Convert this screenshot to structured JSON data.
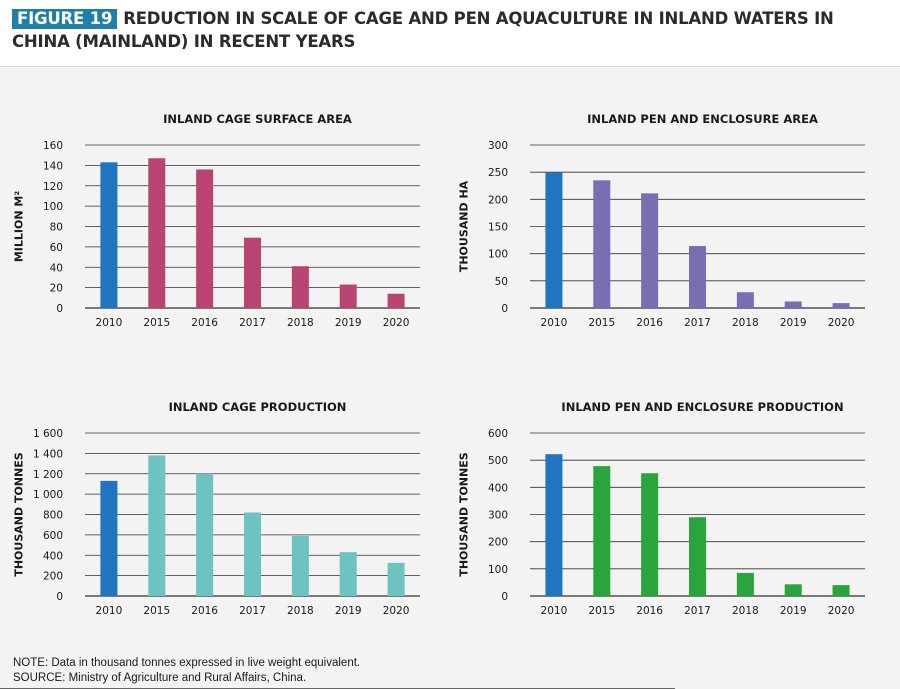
{
  "figure": {
    "tag": "FIGURE 19",
    "title": "REDUCTION IN SCALE OF CAGE AND PEN AQUACULTURE IN INLAND WATERS IN CHINA (MAINLAND) IN RECENT YEARS"
  },
  "notes": {
    "note": "NOTE: Data in thousand tonnes expressed in live weight equivalent.",
    "source": "SOURCE: Ministry of Agriculture and Rural Affairs, China."
  },
  "colors": {
    "highlight_2010": "#1f75c0",
    "cage_area": "#b94474",
    "pen_area": "#7b6db3",
    "cage_production": "#6cc3bf",
    "pen_production": "#2aa43c",
    "gridline": "#333333"
  },
  "chart_data": [
    {
      "type": "bar",
      "title": "INLAND CAGE SURFACE AREA",
      "ylabel": "MILLION M²",
      "categories": [
        "2010",
        "2015",
        "2016",
        "2017",
        "2018",
        "2019",
        "2020"
      ],
      "values": [
        143,
        147,
        136,
        69,
        41,
        23,
        14
      ],
      "ylim": [
        0,
        160
      ],
      "yticks": [
        0,
        20,
        40,
        60,
        80,
        100,
        120,
        140,
        160
      ],
      "ytick_labels": [
        "0",
        "20",
        "40",
        "60",
        "80",
        "100",
        "120",
        "140",
        "160"
      ],
      "color": "#b94474",
      "highlight_color": "#1f75c0",
      "grid": true
    },
    {
      "type": "bar",
      "title": "INLAND PEN AND ENCLOSURE AREA",
      "ylabel": "THOUSAND HA",
      "categories": [
        "2010",
        "2015",
        "2016",
        "2017",
        "2018",
        "2019",
        "2020"
      ],
      "values": [
        249,
        235,
        211,
        114,
        29,
        12,
        9
      ],
      "ylim": [
        0,
        300
      ],
      "yticks": [
        0,
        50,
        100,
        150,
        200,
        250,
        300
      ],
      "ytick_labels": [
        "0",
        "50",
        "100",
        "150",
        "200",
        "250",
        "300"
      ],
      "color": "#7b6db3",
      "highlight_color": "#1f75c0",
      "grid": true
    },
    {
      "type": "bar",
      "title": "INLAND CAGE PRODUCTION",
      "ylabel": "THOUSAND TONNES",
      "categories": [
        "2010",
        "2015",
        "2016",
        "2017",
        "2018",
        "2019",
        "2020"
      ],
      "values": [
        1130,
        1380,
        1200,
        820,
        590,
        430,
        325
      ],
      "ylim": [
        0,
        1600
      ],
      "yticks": [
        0,
        200,
        400,
        600,
        800,
        1000,
        1200,
        1400,
        1600
      ],
      "ytick_labels": [
        "0",
        "200",
        "400",
        "600",
        "800",
        "1 000",
        "1 200",
        "1 400",
        "1 600"
      ],
      "color": "#6cc3bf",
      "highlight_color": "#1f75c0",
      "grid": true
    },
    {
      "type": "bar",
      "title": "INLAND PEN AND ENCLOSURE PRODUCTION",
      "ylabel": "THOUSAND TONNES",
      "categories": [
        "2010",
        "2015",
        "2016",
        "2017",
        "2018",
        "2019",
        "2020"
      ],
      "values": [
        522,
        478,
        452,
        290,
        85,
        43,
        40
      ],
      "ylim": [
        0,
        600
      ],
      "yticks": [
        0,
        100,
        200,
        300,
        400,
        500,
        600
      ],
      "ytick_labels": [
        "0",
        "100",
        "200",
        "300",
        "400",
        "500",
        "600"
      ],
      "color": "#2aa43c",
      "highlight_color": "#1f75c0",
      "grid": true
    }
  ]
}
